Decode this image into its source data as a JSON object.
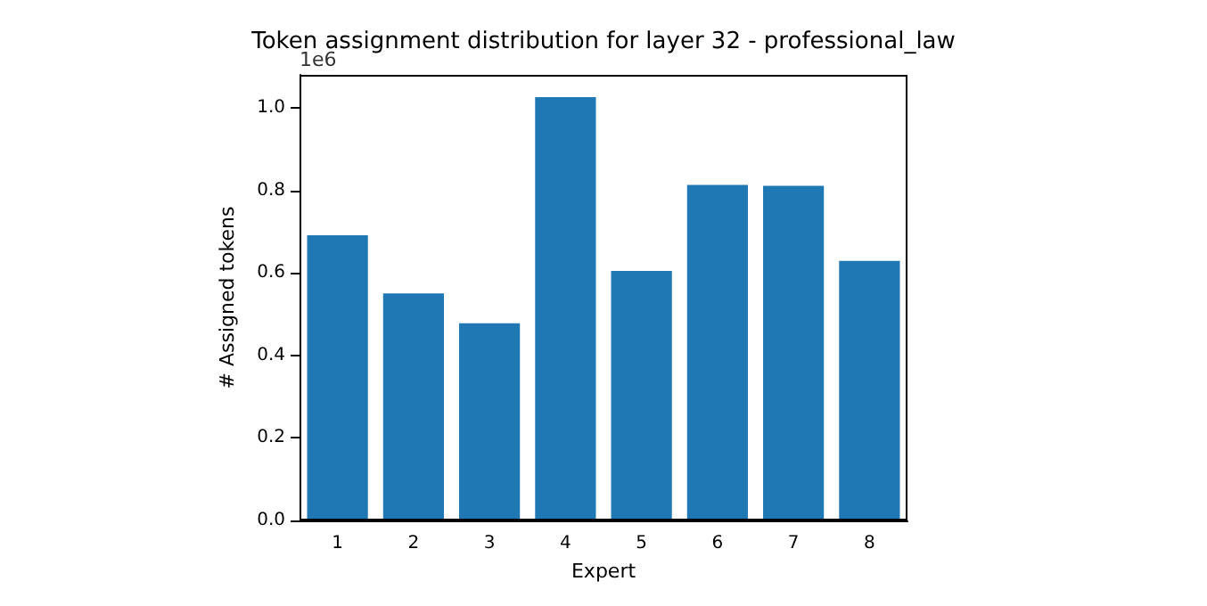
{
  "chart_data": {
    "type": "bar",
    "title": "Token assignment distribution for layer 32 - professional_law",
    "xlabel": "Expert",
    "ylabel": "# Assigned tokens",
    "annotations": [
      "1e6"
    ],
    "categories": [
      "1",
      "2",
      "3",
      "4",
      "5",
      "6",
      "7",
      "8"
    ],
    "values": [
      0.691,
      0.55,
      0.478,
      1.026,
      0.605,
      0.813,
      0.811,
      0.629
    ],
    "color": "#1f77b4",
    "ylim": [
      0,
      1.08
    ],
    "yticks": [
      {
        "value": 0,
        "label": "0.0"
      },
      {
        "value": 0.2,
        "label": "0.2"
      },
      {
        "value": 0.4,
        "label": "0.4"
      },
      {
        "value": 0.6,
        "label": "0.6"
      },
      {
        "value": 0.8,
        "label": "0.8"
      },
      {
        "value": 1,
        "label": "1.0"
      }
    ],
    "grid": false
  }
}
